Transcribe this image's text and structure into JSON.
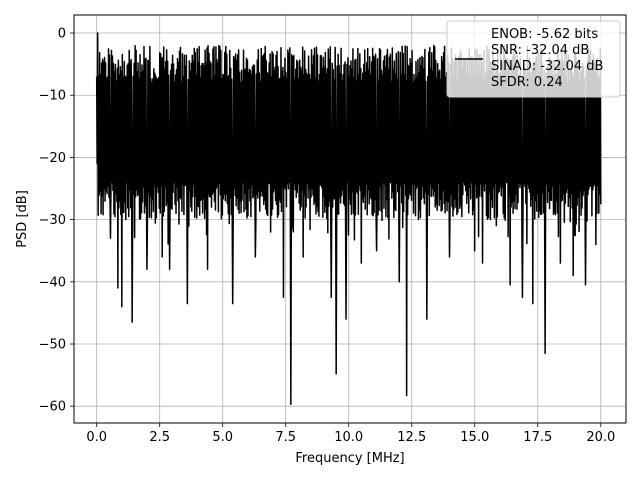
{
  "chart_data": {
    "type": "line",
    "title": "",
    "xlabel": "Frequency [MHz]",
    "ylabel": "PSD [dB]",
    "xlim": [
      -0.9,
      21.0
    ],
    "ylim": [
      -62.7,
      2.9
    ],
    "x_ticks": [
      0.0,
      2.5,
      5.0,
      7.5,
      10.0,
      12.5,
      15.0,
      17.5,
      20.0
    ],
    "x_tick_labels": [
      "0.0",
      "2.5",
      "5.0",
      "7.5",
      "10.0",
      "12.5",
      "15.0",
      "17.5",
      "20.0"
    ],
    "y_ticks": [
      0,
      -10,
      -20,
      -30,
      -40,
      -50,
      -60
    ],
    "y_tick_labels": [
      "0",
      "−10",
      "−20",
      "−30",
      "−40",
      "−50",
      "−60"
    ],
    "grid": true,
    "legend_placement": "top-right",
    "series": [
      {
        "name": "ENOB: -5.62 bits\nSNR: -32.04 dB\nSINAD: -32.04 dB\nSFDR: 0.24",
        "color": "#000000",
        "x_start": 0.0,
        "x_end": 20.0,
        "n_points": 1024,
        "typical_range": [
          -30,
          -2
        ],
        "max": 0.0,
        "notable_dips": [
          {
            "x": 0.55,
            "y": -33
          },
          {
            "x": 0.85,
            "y": -41
          },
          {
            "x": 1.0,
            "y": -44
          },
          {
            "x": 1.4,
            "y": -46.5
          },
          {
            "x": 2.0,
            "y": -38
          },
          {
            "x": 2.6,
            "y": -36
          },
          {
            "x": 2.9,
            "y": -38
          },
          {
            "x": 3.6,
            "y": -43.5
          },
          {
            "x": 4.4,
            "y": -38
          },
          {
            "x": 5.4,
            "y": -43.5
          },
          {
            "x": 6.3,
            "y": -36
          },
          {
            "x": 7.4,
            "y": -42.5
          },
          {
            "x": 7.7,
            "y": -59.7
          },
          {
            "x": 8.2,
            "y": -36
          },
          {
            "x": 9.3,
            "y": -42.5
          },
          {
            "x": 9.5,
            "y": -54.8
          },
          {
            "x": 9.9,
            "y": -46
          },
          {
            "x": 10.5,
            "y": -37
          },
          {
            "x": 11.1,
            "y": -35
          },
          {
            "x": 12.0,
            "y": -40
          },
          {
            "x": 12.3,
            "y": -58.3
          },
          {
            "x": 13.1,
            "y": -46
          },
          {
            "x": 14.0,
            "y": -36
          },
          {
            "x": 15.0,
            "y": -35
          },
          {
            "x": 15.3,
            "y": -37
          },
          {
            "x": 16.4,
            "y": -40.5
          },
          {
            "x": 16.9,
            "y": -42.5
          },
          {
            "x": 17.3,
            "y": -43.5
          },
          {
            "x": 17.8,
            "y": -51.5
          },
          {
            "x": 18.4,
            "y": -37
          },
          {
            "x": 18.9,
            "y": -39
          },
          {
            "x": 19.4,
            "y": -40.5
          },
          {
            "x": 19.8,
            "y": -34
          }
        ]
      }
    ]
  }
}
